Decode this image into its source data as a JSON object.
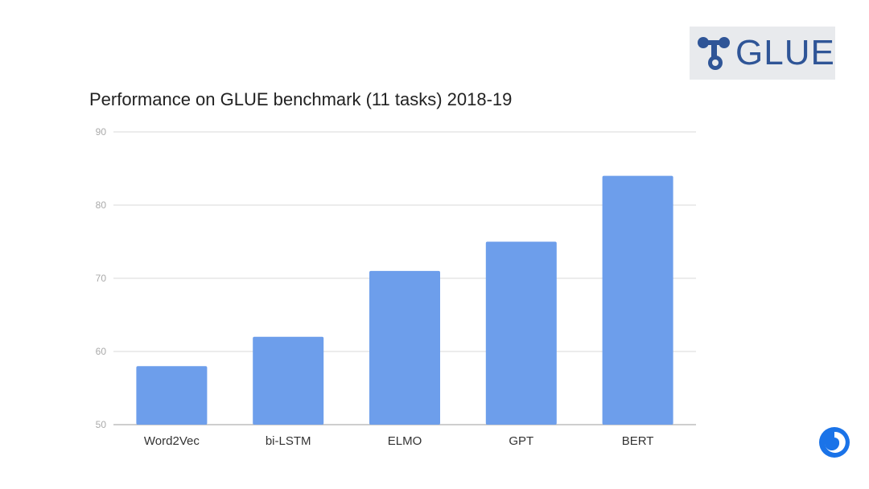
{
  "brand": {
    "logo_text": "GLUE"
  },
  "chart_data": {
    "type": "bar",
    "title": "Performance on GLUE benchmark (11 tasks) 2018-19",
    "categories": [
      "Word2Vec",
      "bi-LSTM",
      "ELMO",
      "GPT",
      "BERT"
    ],
    "values": [
      58,
      62,
      71,
      75,
      84
    ],
    "yticks": [
      "50",
      "60",
      "70",
      "80",
      "90"
    ],
    "ylim": [
      50,
      90
    ],
    "xlabel": "",
    "ylabel": "",
    "grid": true,
    "bar_color": "#6d9eeb"
  },
  "colors": {
    "logo_blue": "#2f5597",
    "logo_bg": "#e8eaed",
    "corner_logo": "#1a73e8"
  }
}
